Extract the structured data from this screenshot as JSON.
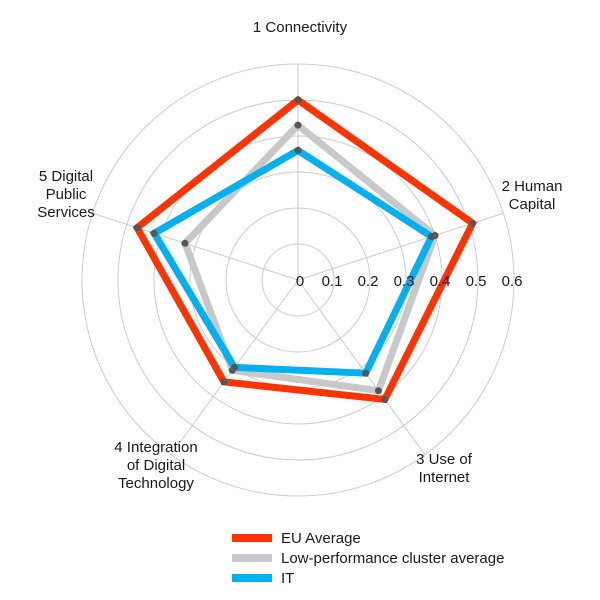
{
  "chart_data": {
    "type": "radar",
    "axes": [
      [
        "1 Connectivity"
      ],
      [
        "2 Human",
        "Capital"
      ],
      [
        "3 Use of",
        "Internet"
      ],
      [
        "4 Integration",
        "of Digital",
        "Technology"
      ],
      [
        "5 Digital",
        "Public",
        "Services"
      ]
    ],
    "ticks": [
      "0",
      "0.1",
      "0.2",
      "0.3",
      "0.4",
      "0.5",
      "0.6"
    ],
    "rmax": 0.6,
    "series": [
      {
        "name": "EU Average",
        "color": "#ff3300",
        "values": [
          0.5,
          0.51,
          0.41,
          0.35,
          0.47
        ]
      },
      {
        "name": "Low-performance cluster average",
        "color": "#c8c8c8",
        "values": [
          0.43,
          0.4,
          0.38,
          0.31,
          0.33
        ]
      },
      {
        "name": "IT",
        "color": "#00b0f0",
        "values": [
          0.36,
          0.39,
          0.32,
          0.3,
          0.42
        ]
      }
    ],
    "grid": true,
    "legend": "bottom"
  }
}
